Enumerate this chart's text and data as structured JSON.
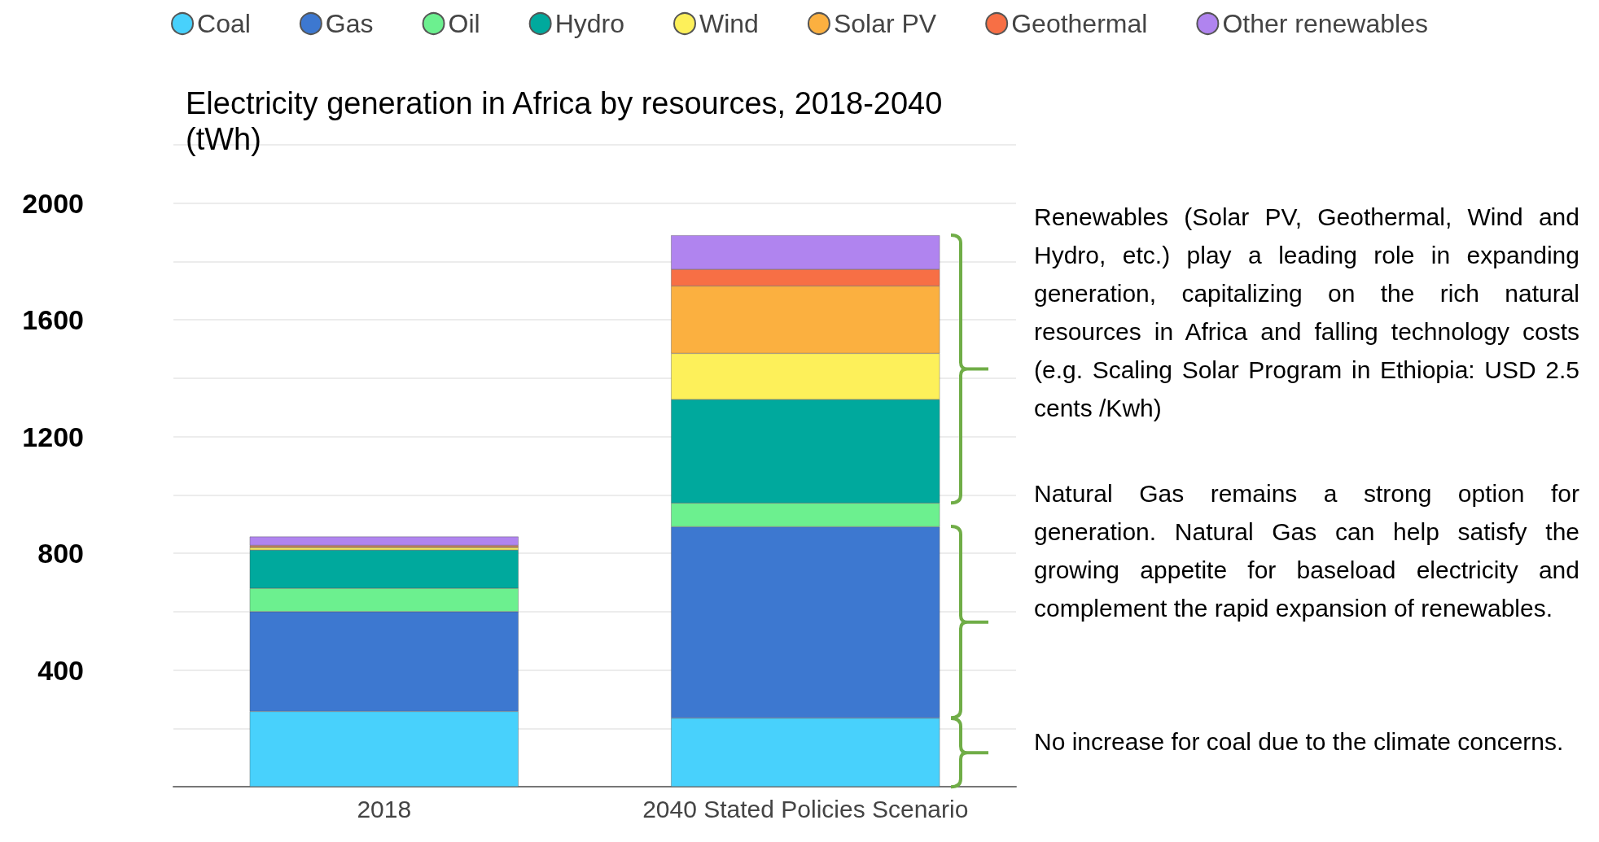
{
  "chart_data": {
    "type": "bar",
    "stacked": true,
    "title": "Electricity generation in Africa by resources, 2018-2040 (tWh)",
    "categories": [
      "2018",
      "2040 Stated Policies Scenario"
    ],
    "series": [
      {
        "name": "Coal",
        "color": "#48d1fc",
        "values": [
          258,
          235
        ]
      },
      {
        "name": "Gas",
        "color": "#3d78d0",
        "values": [
          342,
          656
        ]
      },
      {
        "name": "Oil",
        "color": "#6cf08f",
        "values": [
          80,
          81
        ]
      },
      {
        "name": "Hydro",
        "color": "#00a99d",
        "values": [
          131,
          355
        ]
      },
      {
        "name": "Wind",
        "color": "#fdf05a",
        "values": [
          8,
          158
        ]
      },
      {
        "name": "Solar PV",
        "color": "#fbb040",
        "values": [
          4,
          231
        ]
      },
      {
        "name": "Geothermal",
        "color": "#f76f45",
        "values": [
          4,
          57
        ]
      },
      {
        "name": "Other renewables",
        "color": "#b084ef",
        "values": [
          30,
          117
        ]
      }
    ],
    "ylim": [
      0,
      2200
    ],
    "yticks": [
      {
        "value": 0,
        "label": null
      },
      {
        "value": 200,
        "label": null
      },
      400,
      {
        "value": 600,
        "label": null
      },
      800,
      {
        "value": 1000,
        "label": null
      },
      1200,
      {
        "value": 1400,
        "label": null
      },
      1600,
      {
        "value": 1800,
        "label": null
      },
      2000,
      {
        "value": 2200,
        "label": null
      }
    ],
    "grid": "y",
    "legend": "top",
    "annotations": [
      "Renewables (Solar PV, Geothermal, Wind and Hydro, etc.) play a leading role in expanding generation, capitalizing on the rich natural resources in Africa and falling technology costs (e.g. Scaling Solar Program in Ethiopia: USD 2.5 cents /Kwh)",
      "Natural Gas remains a strong option for generation. Natural Gas can help satisfy the growing appetite for baseload electricity and complement the rapid expansion of renewables.",
      "No increase for coal due to the climate concerns."
    ]
  }
}
